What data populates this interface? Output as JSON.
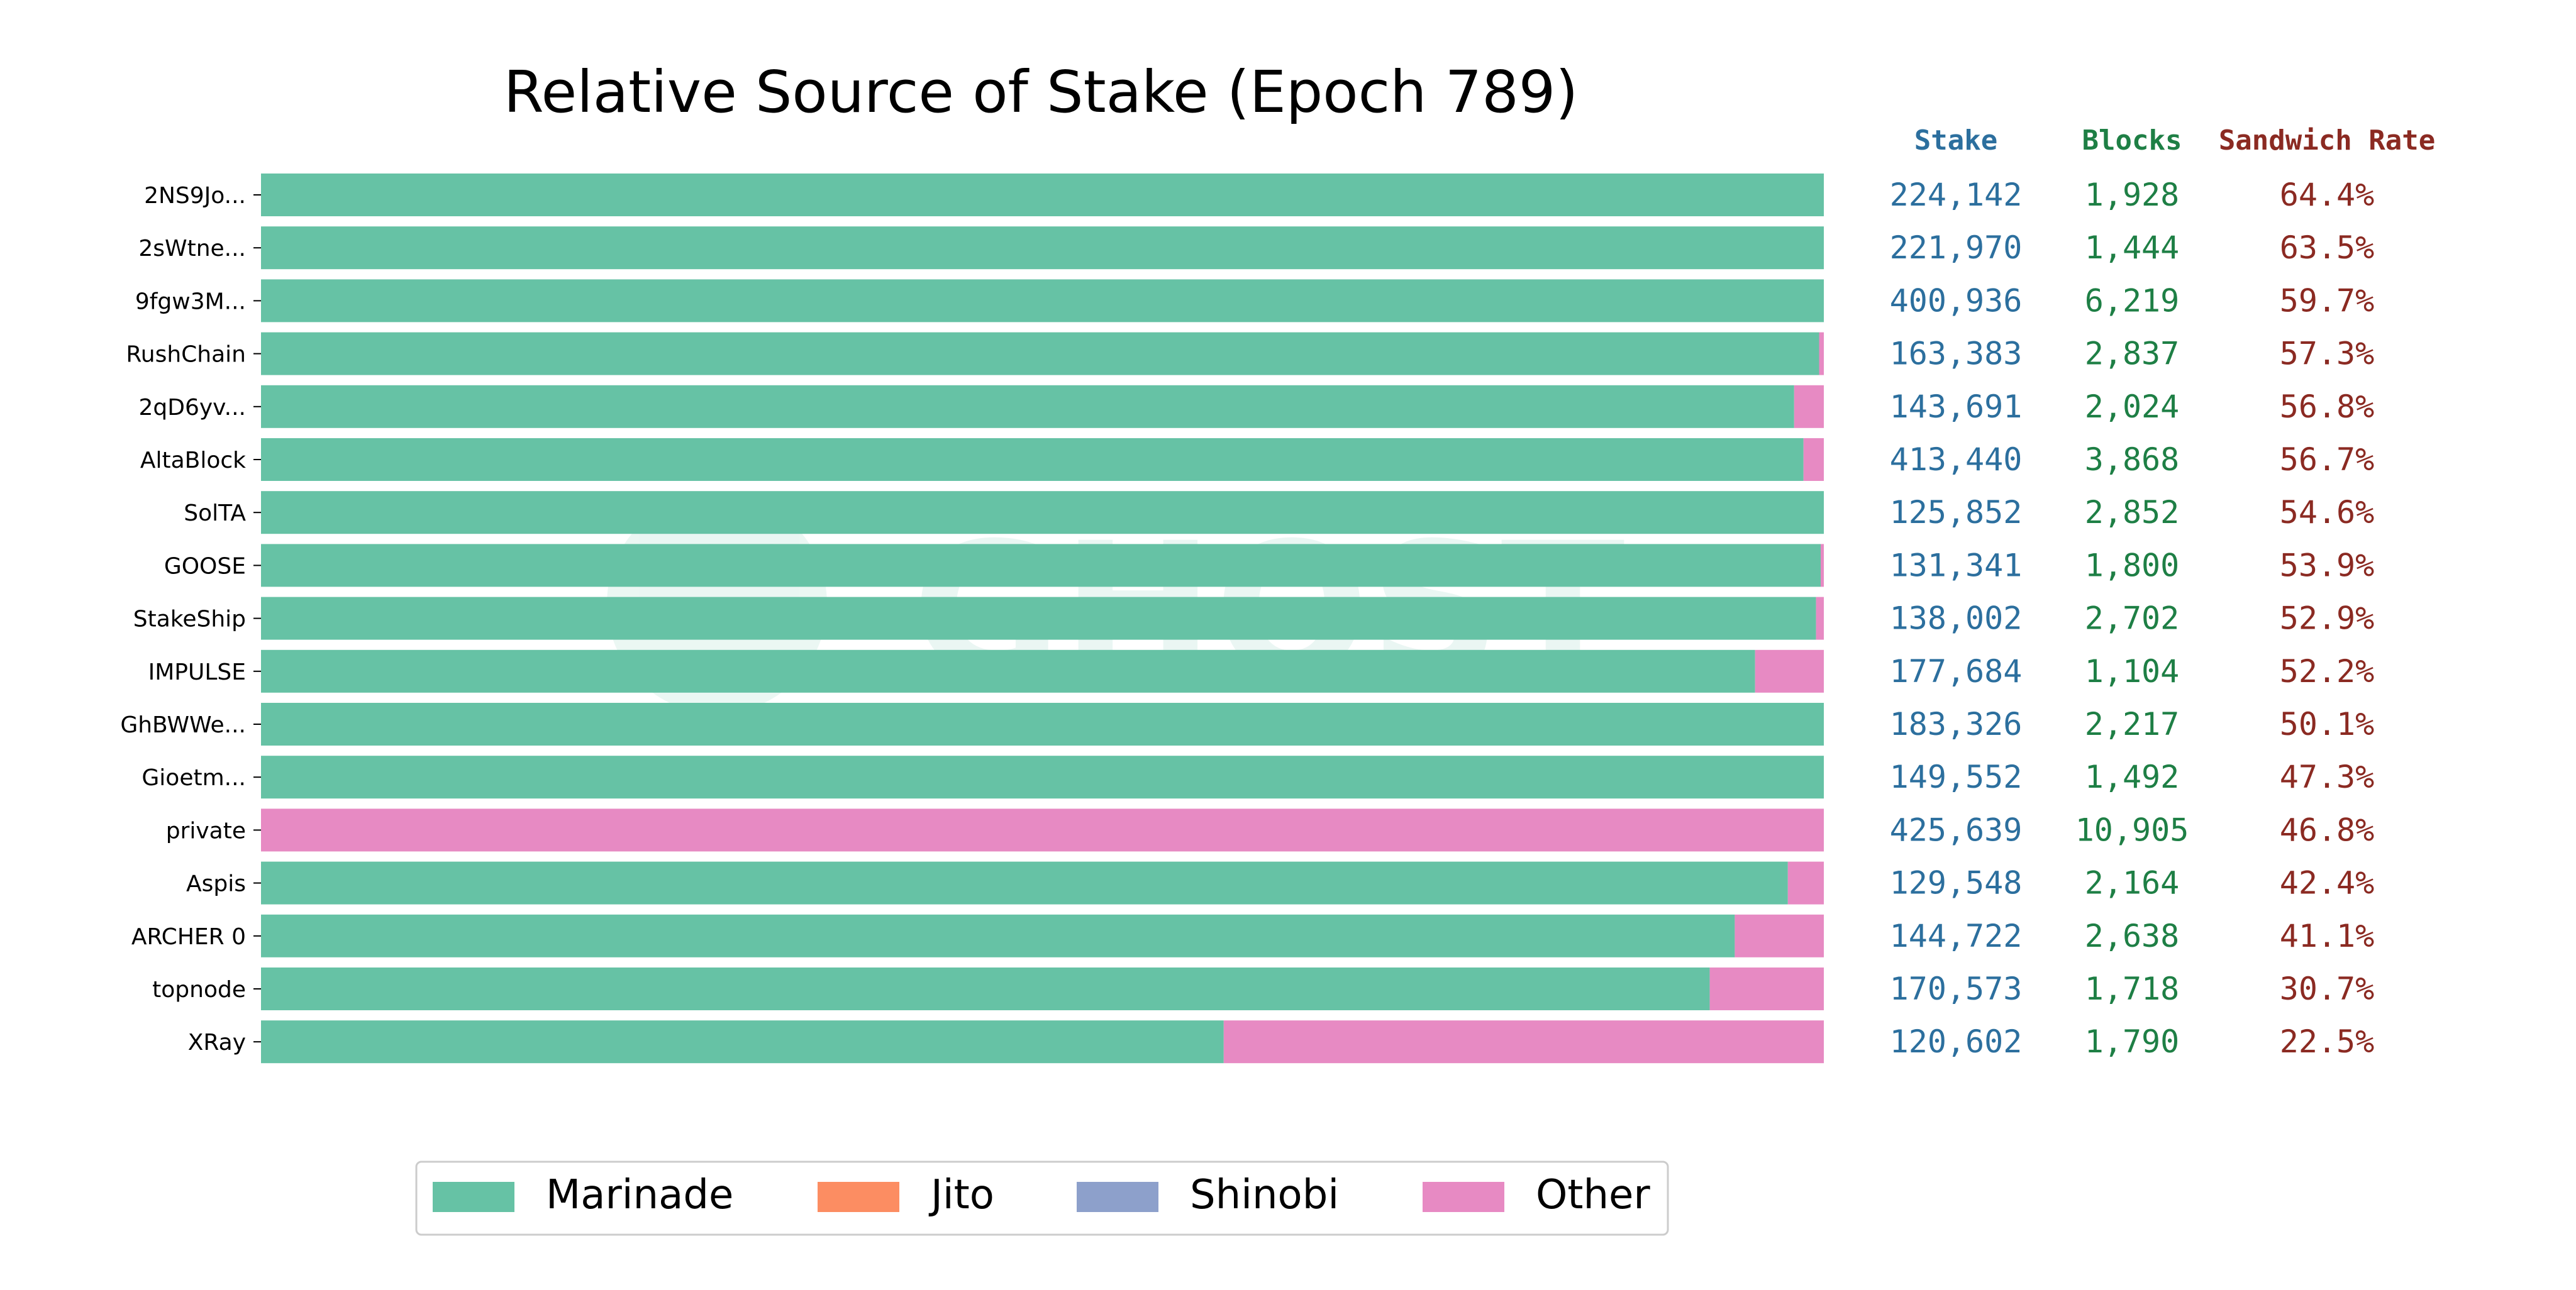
{
  "chart_data": {
    "type": "bar",
    "orientation": "horizontal",
    "stacked": true,
    "normalized": true,
    "title": "Relative Source of Stake (Epoch 789)",
    "xlim": [
      0,
      1
    ],
    "categories": [
      "2NS9Jo...",
      "2sWtne...",
      "9fgw3M...",
      "RushChain",
      "2qD6yv...",
      "AltaBlock",
      "SolTA",
      "GOOSE",
      "StakeShip",
      "IMPULSE",
      "GhBWWe...",
      "Gioetm...",
      "private",
      "Aspis",
      "ARCHER 0",
      "topnode",
      "XRay"
    ],
    "series": [
      {
        "name": "Marinade",
        "color": "#66c2a5",
        "values": [
          1.0,
          1.0,
          1.0,
          0.997,
          0.981,
          0.987,
          1.0,
          0.998,
          0.995,
          0.956,
          1.0,
          1.0,
          0.0,
          0.977,
          0.943,
          0.927,
          0.616
        ]
      },
      {
        "name": "Jito",
        "color": "#fc8d62",
        "values": [
          0,
          0,
          0,
          0,
          0,
          0,
          0,
          0,
          0,
          0,
          0,
          0,
          0,
          0,
          0,
          0,
          0
        ]
      },
      {
        "name": "Shinobi",
        "color": "#8da0cb",
        "values": [
          0,
          0,
          0,
          0,
          0,
          0,
          0,
          0,
          0,
          0,
          0,
          0,
          0,
          0,
          0,
          0,
          0
        ]
      },
      {
        "name": "Other",
        "color": "#e78ac3",
        "values": [
          0.0,
          0.0,
          0.0,
          0.003,
          0.019,
          0.013,
          0.0,
          0.002,
          0.005,
          0.044,
          0.0,
          0.0,
          1.0,
          0.023,
          0.057,
          0.073,
          0.384
        ]
      }
    ],
    "table": {
      "headers": {
        "stake": "Stake",
        "blocks": "Blocks",
        "sandwich": "Sandwich Rate"
      },
      "header_colors": {
        "stake": "#2c6f9e",
        "blocks": "#1e7f45",
        "sandwich": "#8b2a22"
      },
      "stake": [
        "224,142",
        "221,970",
        "400,936",
        "163,383",
        "143,691",
        "413,440",
        "125,852",
        "131,341",
        "138,002",
        "177,684",
        "183,326",
        "149,552",
        "425,639",
        "129,548",
        "144,722",
        "170,573",
        "120,602"
      ],
      "blocks": [
        "1,928",
        "1,444",
        "6,219",
        "2,837",
        "2,024",
        "3,868",
        "2,852",
        "1,800",
        "2,702",
        "1,104",
        "2,217",
        "1,492",
        "10,905",
        "2,164",
        "2,638",
        "1,718",
        "1,790"
      ],
      "sandwich_rate": [
        "64.4%",
        "63.5%",
        "59.7%",
        "57.3%",
        "56.8%",
        "56.7%",
        "54.6%",
        "53.9%",
        "52.9%",
        "52.2%",
        "50.1%",
        "47.3%",
        "46.8%",
        "42.4%",
        "41.1%",
        "30.7%",
        "22.5%"
      ]
    },
    "legend": {
      "placement": "bottom-center",
      "items": [
        "Marinade",
        "Jito",
        "Shinobi",
        "Other"
      ]
    },
    "watermark": {
      "text": "GHOST",
      "color": "#66c2a5"
    }
  }
}
